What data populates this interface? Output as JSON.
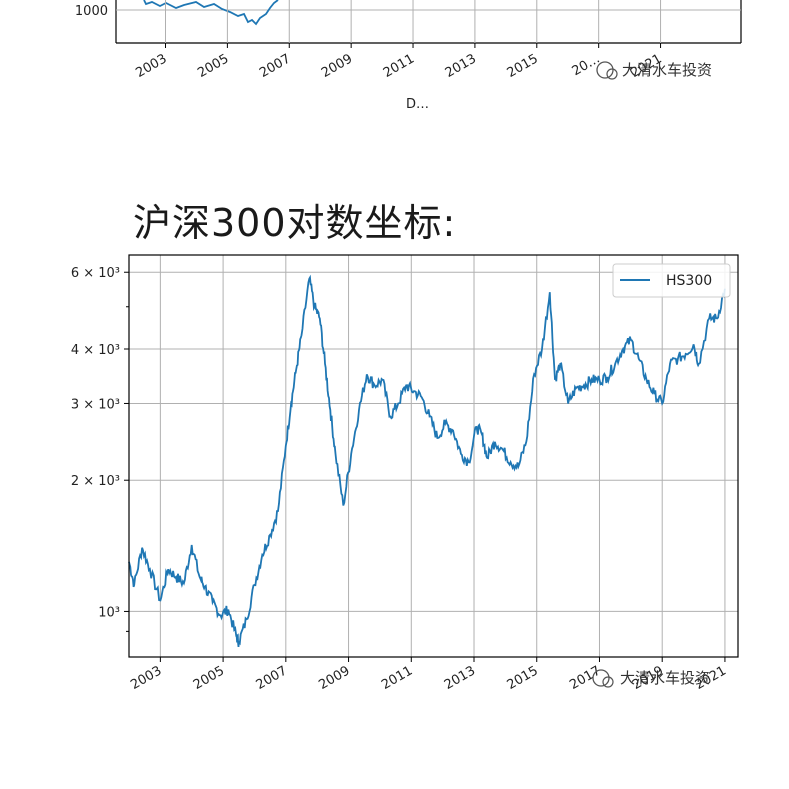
{
  "heading": "沪深300对数坐标:",
  "watermark": "大清水车投资",
  "colors": {
    "series": "#1f77b4",
    "grid": "#b0b0b0",
    "axis": "#000000"
  },
  "top_chart_fragment": {
    "ytick_label": "1000",
    "xtick_labels": [
      "2003",
      "2005",
      "2007",
      "2009",
      "2011",
      "2013",
      "2015",
      "20…",
      "2021"
    ],
    "xlabel_partial": "D…"
  },
  "chart_data": {
    "type": "line",
    "title": "",
    "xlabel": "",
    "ylabel": "",
    "yscale": "log",
    "ylim": [
      820,
      6300
    ],
    "xlim": [
      "2002-01-01",
      "2021-06-01"
    ],
    "grid": true,
    "legend_position": "top-right",
    "xtick_labels": [
      "2003",
      "2005",
      "2007",
      "2009",
      "2011",
      "2013",
      "2015",
      "2017",
      "2019",
      "2021"
    ],
    "ytick_labels": [
      {
        "value": 1000,
        "label": "10³"
      },
      {
        "value": 2000,
        "label": "2 × 10³"
      },
      {
        "value": 3000,
        "label": "3 × 10³"
      },
      {
        "value": 4000,
        "label": "4 × 10³"
      },
      {
        "value": 6000,
        "label": "6 × 10³"
      }
    ],
    "series": [
      {
        "name": "HS300",
        "x": [
          "2002-01",
          "2002-03",
          "2002-06",
          "2002-09",
          "2003-01",
          "2003-04",
          "2003-07",
          "2003-10",
          "2004-01",
          "2004-04",
          "2004-06",
          "2004-09",
          "2004-12",
          "2005-03",
          "2005-06",
          "2005-07",
          "2005-10",
          "2006-01",
          "2006-04",
          "2006-07",
          "2006-10",
          "2007-01",
          "2007-03",
          "2007-05",
          "2007-07",
          "2007-10",
          "2007-12",
          "2008-02",
          "2008-04",
          "2008-06",
          "2008-08",
          "2008-11",
          "2009-02",
          "2009-05",
          "2009-08",
          "2009-11",
          "2010-02",
          "2010-05",
          "2010-08",
          "2010-11",
          "2011-02",
          "2011-05",
          "2011-08",
          "2011-11",
          "2012-02",
          "2012-05",
          "2012-08",
          "2012-11",
          "2013-02",
          "2013-04",
          "2013-06",
          "2013-09",
          "2013-12",
          "2014-03",
          "2014-06",
          "2014-09",
          "2014-12",
          "2015-03",
          "2015-06",
          "2015-08",
          "2015-10",
          "2016-01",
          "2016-04",
          "2016-07",
          "2016-10",
          "2017-01",
          "2017-04",
          "2017-07",
          "2017-10",
          "2018-01",
          "2018-04",
          "2018-07",
          "2018-10",
          "2019-01",
          "2019-04",
          "2019-07",
          "2019-10",
          "2020-01",
          "2020-03",
          "2020-07",
          "2020-10",
          "2021-01"
        ],
        "values": [
          1300,
          1150,
          1400,
          1250,
          1060,
          1250,
          1200,
          1160,
          1420,
          1200,
          1140,
          1050,
          980,
          1010,
          880,
          850,
          960,
          1150,
          1350,
          1500,
          1700,
          2400,
          3000,
          3600,
          4300,
          5800,
          5000,
          4700,
          3700,
          2900,
          2300,
          1750,
          2300,
          2900,
          3500,
          3300,
          3400,
          2800,
          3000,
          3300,
          3200,
          3100,
          2800,
          2500,
          2700,
          2600,
          2300,
          2200,
          2650,
          2550,
          2250,
          2450,
          2350,
          2200,
          2150,
          2450,
          3500,
          4000,
          5400,
          3400,
          3700,
          3000,
          3250,
          3300,
          3400,
          3400,
          3450,
          3700,
          4000,
          4200,
          3800,
          3400,
          3150,
          3000,
          3700,
          3800,
          3900,
          4100,
          3700,
          4700,
          4700,
          5500
        ]
      }
    ]
  }
}
